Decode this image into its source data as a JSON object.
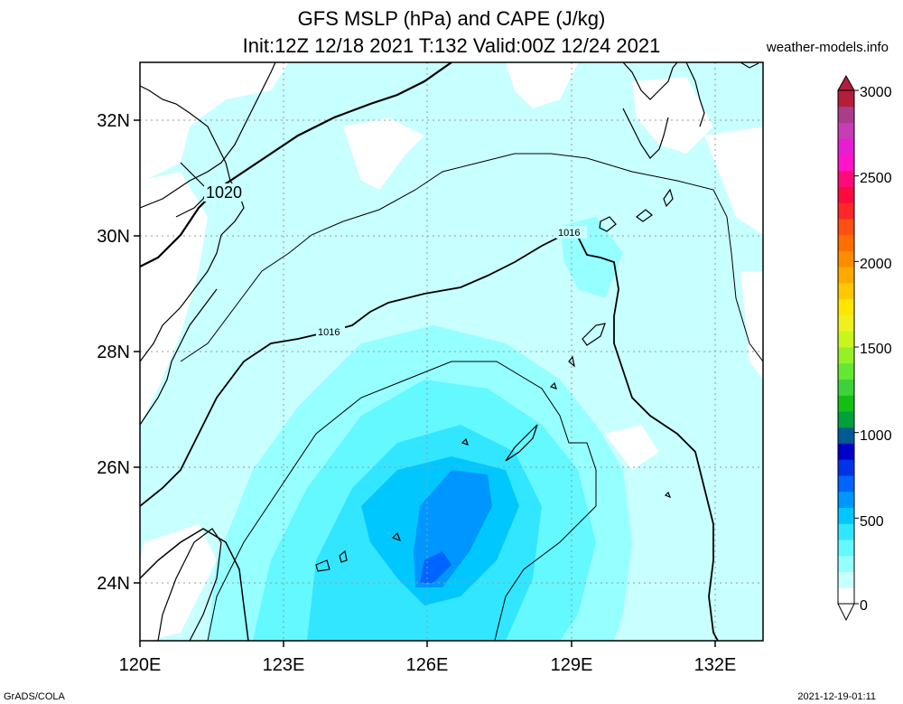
{
  "header": {
    "title_line1": "GFS MSLP (hPa) and CAPE (J/kg)",
    "title_line2": "Init:12Z 12/18 2021 T:132 Valid:00Z 12/24 2021",
    "site": "weather-models.info"
  },
  "footer": {
    "left": "GrADS/COLA",
    "right": "2021-12-19-01:11"
  },
  "chart_data": {
    "type": "heatmap",
    "title": "GFS MSLP (hPa) and CAPE (J/kg)",
    "subtitle": "Init:12Z 12/18 2021 T:132 Valid:00Z 12/24 2021",
    "xlabel": "",
    "ylabel": "",
    "x_ticks": [
      "120E",
      "123E",
      "126E",
      "129E",
      "132E"
    ],
    "y_ticks": [
      "32N",
      "30N",
      "28N",
      "26N",
      "24N"
    ],
    "xlim": [
      120,
      133
    ],
    "ylim": [
      23,
      33
    ],
    "grid": true,
    "legend": "colorbar-right",
    "colorbar": {
      "ticks": [
        "0",
        "500",
        "1000",
        "1500",
        "2000",
        "2500",
        "3000"
      ],
      "min": 0,
      "max": 3000,
      "colors": [
        "#ffffff",
        "#c8ffff",
        "#96ffff",
        "#64f8ff",
        "#32e6ff",
        "#00c8ff",
        "#0096ff",
        "#0064ff",
        "#0032e6",
        "#0000c8",
        "#005a96",
        "#00a03c",
        "#14be14",
        "#3cd23c",
        "#64e632",
        "#96f028",
        "#c8f51e",
        "#f0f01e",
        "#ffe600",
        "#ffc800",
        "#ffaa00",
        "#ff8c00",
        "#ff6e00",
        "#ff5014",
        "#ff2828",
        "#ff0a3c",
        "#ff0a78",
        "#ff14c8",
        "#e61ed2",
        "#c83cb4",
        "#aa3c8c",
        "#b41e3c"
      ]
    },
    "contours": {
      "variable": "MSLP",
      "units": "hPa",
      "labels": [
        "1020",
        "1016",
        "1016"
      ]
    },
    "cape_regions": [
      {
        "level": 100,
        "lon": [
          120,
          133
        ],
        "lat": [
          23,
          33
        ]
      },
      {
        "level": 200,
        "lon": [
          122.5,
          130.5
        ],
        "lat": [
          23,
          27.5
        ]
      },
      {
        "level": 300,
        "lon": [
          123.5,
          129
        ],
        "lat": [
          23,
          26.5
        ]
      },
      {
        "level": 400,
        "lon": [
          124.5,
          128
        ],
        "lat": [
          23.5,
          25.8
        ]
      },
      {
        "level": 600,
        "lon": [
          125.8,
          127.3
        ],
        "lat": [
          24,
          25.6
        ]
      }
    ]
  }
}
